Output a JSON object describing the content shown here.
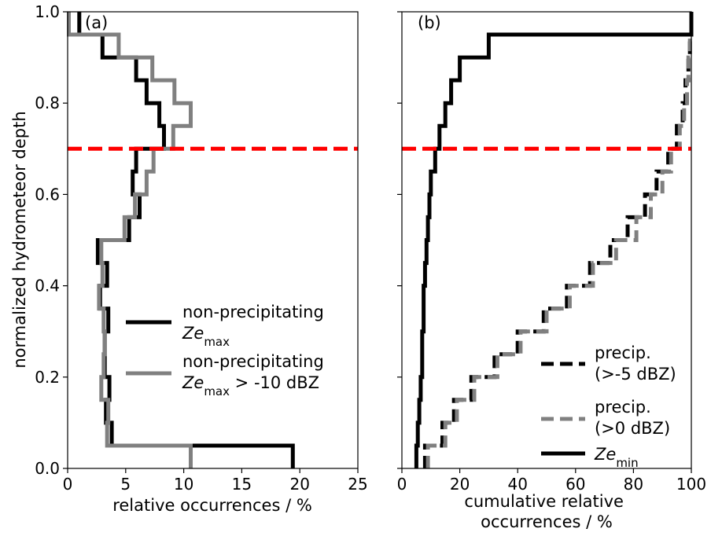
{
  "figure": {
    "ylabel": "normalized hydrometeor depth"
  },
  "colors": {
    "black": "#000000",
    "gray": "#808080",
    "red": "#ff0000"
  },
  "chart_data": [
    {
      "type": "line",
      "panel_label": "(a)",
      "xlabel": "relative occurrences / %",
      "ylabel": "normalized hydrometeor depth",
      "xlim": [
        0,
        25
      ],
      "ylim": [
        0,
        1
      ],
      "xticks": [
        "0",
        "5",
        "10",
        "15",
        "20",
        "25"
      ],
      "yticks": [
        "0.0",
        "0.2",
        "0.4",
        "0.6",
        "0.8",
        "1.0"
      ],
      "grid": false,
      "legend_position": "lower-right",
      "reference_line": {
        "y": 0.7,
        "style": "dashed",
        "color": "#ff0000"
      },
      "series": [
        {
          "legend_line1": "non-precipitating",
          "legend_line2_sym": "Ze",
          "legend_line2_sub": "max",
          "legend_line2_tail": "",
          "color": "#000000",
          "style": "solid",
          "step_values": [
            19.4,
            3.8,
            3.3,
            3.6,
            3.2,
            3.2,
            3.5,
            2.8,
            3.4,
            2.6,
            5.3,
            6.2,
            5.6,
            5.9,
            8.3,
            7.9,
            6.8,
            5.9,
            3.0,
            1.0
          ]
        },
        {
          "legend_line1": "non-precipitating",
          "legend_line2_sym": "Ze",
          "legend_line2_sub": "max",
          "legend_line2_tail": " > -10 dBZ",
          "color": "#808080",
          "style": "solid",
          "step_values": [
            10.6,
            3.4,
            3.5,
            2.9,
            3.1,
            3.2,
            3.1,
            2.7,
            3.0,
            2.9,
            4.9,
            5.8,
            6.8,
            7.4,
            9.1,
            10.6,
            9.2,
            7.3,
            4.4,
            0.1
          ]
        }
      ]
    },
    {
      "type": "line",
      "panel_label": "(b)",
      "xlabel_line1": "cumulative relative",
      "xlabel_line2": "occurrences / %",
      "xlim": [
        0,
        100
      ],
      "ylim": [
        0,
        1
      ],
      "xticks": [
        "0",
        "20",
        "40",
        "60",
        "80",
        "100"
      ],
      "grid": false,
      "legend_position": "lower-right",
      "reference_line": {
        "y": 0.7,
        "style": "dashed",
        "color": "#ff0000"
      },
      "series": [
        {
          "legend_line1": "precip.",
          "legend_line2": "(>-5 dBZ)",
          "color": "#000000",
          "style": "dashed",
          "step_values": [
            8,
            14,
            18,
            24,
            32,
            40,
            49,
            57,
            65,
            72,
            78,
            84,
            88,
            92,
            95,
            97,
            98,
            99,
            99.5,
            100
          ]
        },
        {
          "legend_line1": "precip.",
          "legend_line2": "(>0 dBZ)",
          "color": "#808080",
          "style": "dashed",
          "step_values": [
            9,
            15,
            19,
            25,
            33,
            41,
            50,
            58,
            66,
            74,
            81,
            86,
            90,
            93,
            96,
            97.5,
            98.5,
            99,
            99.5,
            100
          ]
        },
        {
          "legend_sym": "Ze",
          "legend_sub": "min",
          "color": "#000000",
          "style": "solid",
          "step_values": [
            5,
            5.5,
            6,
            6.5,
            7,
            7,
            7.5,
            7.5,
            8,
            8.5,
            9,
            9.5,
            10,
            11.5,
            13,
            15,
            17,
            20,
            30,
            100
          ]
        }
      ]
    }
  ]
}
